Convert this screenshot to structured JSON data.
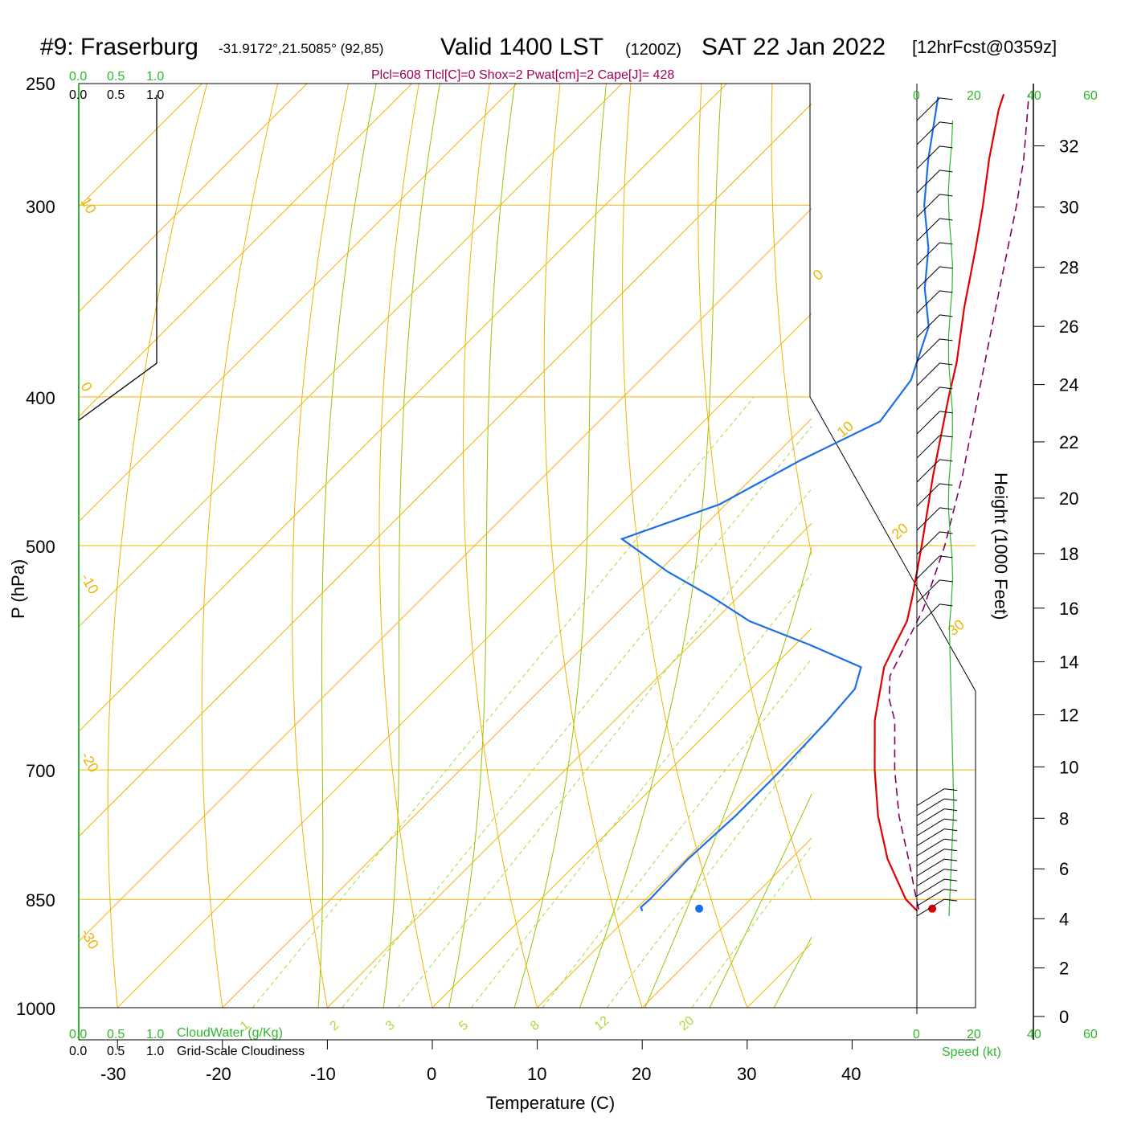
{
  "title": {
    "station": "#9: Fraserburg",
    "coords": "-31.9172°,21.5085° (92,85)",
    "valid": "Valid 1400 LST",
    "zulu": "(1200Z)",
    "date": "SAT 22 Jan 2022",
    "forecast": "[12hrFcst@0359z]"
  },
  "indices": "Plcl=608 Tlcl[C]=0 Shox=2 Pwat[cm]=2 Cape[J]= 428",
  "axes": {
    "xlabel": "Temperature (C)",
    "ylabel": "P (hPa)",
    "height_label": "Height (1000 Feet)",
    "x_ticks": [
      "-30",
      "-20",
      "-10",
      "0",
      "10",
      "20",
      "30",
      "40"
    ],
    "p_ticks": [
      "250",
      "300",
      "400",
      "500",
      "700",
      "850",
      "1000"
    ],
    "height_ticks": [
      "0",
      "2",
      "4",
      "6",
      "8",
      "10",
      "12",
      "14",
      "16",
      "18",
      "20",
      "22",
      "24",
      "26",
      "28",
      "30",
      "32"
    ]
  },
  "cloud_panel": {
    "top_green_ticks": [
      "0.0",
      "0.5",
      "1.0"
    ],
    "top_black_ticks": [
      "0.0",
      "0.5",
      "1.0"
    ],
    "bottom_green_ticks": [
      "0.0",
      "0.5",
      "1.0"
    ],
    "bottom_black_ticks": [
      "0.0",
      "0.5",
      "1.0"
    ],
    "cloudwater_label": "CloudWater (g/Kg)",
    "cloudiness_label": "Grid-Scale Cloudiness"
  },
  "wind_panel": {
    "speed_ticks": [
      "0",
      "20",
      "40",
      "60"
    ],
    "speed_label": "Speed (kt)"
  },
  "isotherm_labels": [
    "10",
    "0",
    "-10",
    "-20",
    "-30",
    "0",
    "10",
    "20",
    "30"
  ],
  "mixing_ratio_labels": [
    "1",
    "2",
    "3",
    "5",
    "8",
    "12",
    "20"
  ],
  "colors": {
    "temperature": "#e00000",
    "dewpoint": "#1a6fe8",
    "parcel": "#800060",
    "isobar": "#f0b400",
    "dry_adiabat": "#f0b400",
    "moist_adiabat": "#90c800",
    "mixing_ratio": "#a8d838",
    "green_text": "#2db82d",
    "indices_text": "#a0005a"
  },
  "chart_data": {
    "type": "line",
    "title": "Valid 1400 LST (1200Z) SAT 22 Jan 2022",
    "xlabel": "Temperature (C)",
    "ylabel": "P (hPa)",
    "xlim": [
      -34,
      36
    ],
    "ylim": [
      1000,
      250
    ],
    "y_scale": "log",
    "series": [
      {
        "name": "Temperature",
        "points": [
          {
            "p": 865,
            "t": 37.0
          },
          {
            "p": 850,
            "t": 34.8
          },
          {
            "p": 800,
            "t": 29.2
          },
          {
            "p": 750,
            "t": 24.2
          },
          {
            "p": 700,
            "t": 19.5
          },
          {
            "p": 650,
            "t": 14.8
          },
          {
            "p": 600,
            "t": 10.6
          },
          {
            "p": 580,
            "t": 9.5
          },
          {
            "p": 560,
            "t": 8.4
          },
          {
            "p": 540,
            "t": 6.6
          },
          {
            "p": 500,
            "t": 2.6
          },
          {
            "p": 450,
            "t": -3.0
          },
          {
            "p": 400,
            "t": -9.0
          },
          {
            "p": 380,
            "t": -11.5
          },
          {
            "p": 350,
            "t": -16.0
          },
          {
            "p": 320,
            "t": -20.6
          },
          {
            "p": 300,
            "t": -24.0
          },
          {
            "p": 280,
            "t": -27.8
          },
          {
            "p": 260,
            "t": -31.6
          },
          {
            "p": 254,
            "t": -32.6
          }
        ]
      },
      {
        "name": "Dewpoint",
        "points": [
          {
            "p": 865,
            "t": 10.8
          },
          {
            "p": 860,
            "t": 10.3
          },
          {
            "p": 850,
            "t": 10.4
          },
          {
            "p": 800,
            "t": 10.2
          },
          {
            "p": 750,
            "t": 10.6
          },
          {
            "p": 700,
            "t": 10.6
          },
          {
            "p": 650,
            "t": 10.3
          },
          {
            "p": 620,
            "t": 9.9
          },
          {
            "p": 600,
            "t": 8.4
          },
          {
            "p": 580,
            "t": 1.3
          },
          {
            "p": 560,
            "t": -6.6
          },
          {
            "p": 540,
            "t": -12.5
          },
          {
            "p": 520,
            "t": -19.1
          },
          {
            "p": 495,
            "t": -26.6
          },
          {
            "p": 470,
            "t": -20.6
          },
          {
            "p": 440,
            "t": -17.1
          },
          {
            "p": 415,
            "t": -13.2
          },
          {
            "p": 390,
            "t": -14.2
          },
          {
            "p": 360,
            "t": -17.6
          },
          {
            "p": 340,
            "t": -21.6
          },
          {
            "p": 320,
            "t": -25.1
          },
          {
            "p": 300,
            "t": -29.6
          },
          {
            "p": 280,
            "t": -33.6
          },
          {
            "p": 255,
            "t": -38.6
          }
        ]
      },
      {
        "name": "Parcel",
        "points": [
          {
            "p": 863,
            "t": 37.0
          },
          {
            "p": 850,
            "t": 35.8
          },
          {
            "p": 800,
            "t": 31.2
          },
          {
            "p": 750,
            "t": 26.2
          },
          {
            "p": 700,
            "t": 21.4
          },
          {
            "p": 650,
            "t": 16.7
          },
          {
            "p": 630,
            "t": 14.2
          },
          {
            "p": 608,
            "t": 12.0
          },
          {
            "p": 550,
            "t": 8.8
          },
          {
            "p": 500,
            "t": 4.8
          },
          {
            "p": 450,
            "t": -0.2
          },
          {
            "p": 400,
            "t": -6.2
          },
          {
            "p": 350,
            "t": -13.0
          },
          {
            "p": 300,
            "t": -20.8
          },
          {
            "p": 280,
            "t": -24.5
          },
          {
            "p": 254,
            "t": -30.2
          }
        ]
      }
    ],
    "surface": {
      "t": 38.2,
      "td": 16.0,
      "p": 862
    },
    "height_axis": {
      "label": "Height (1000 Feet)",
      "range": [
        0,
        32
      ]
    },
    "wind_speed_axis": {
      "label": "Speed (kt)",
      "range": [
        0,
        60
      ]
    }
  }
}
